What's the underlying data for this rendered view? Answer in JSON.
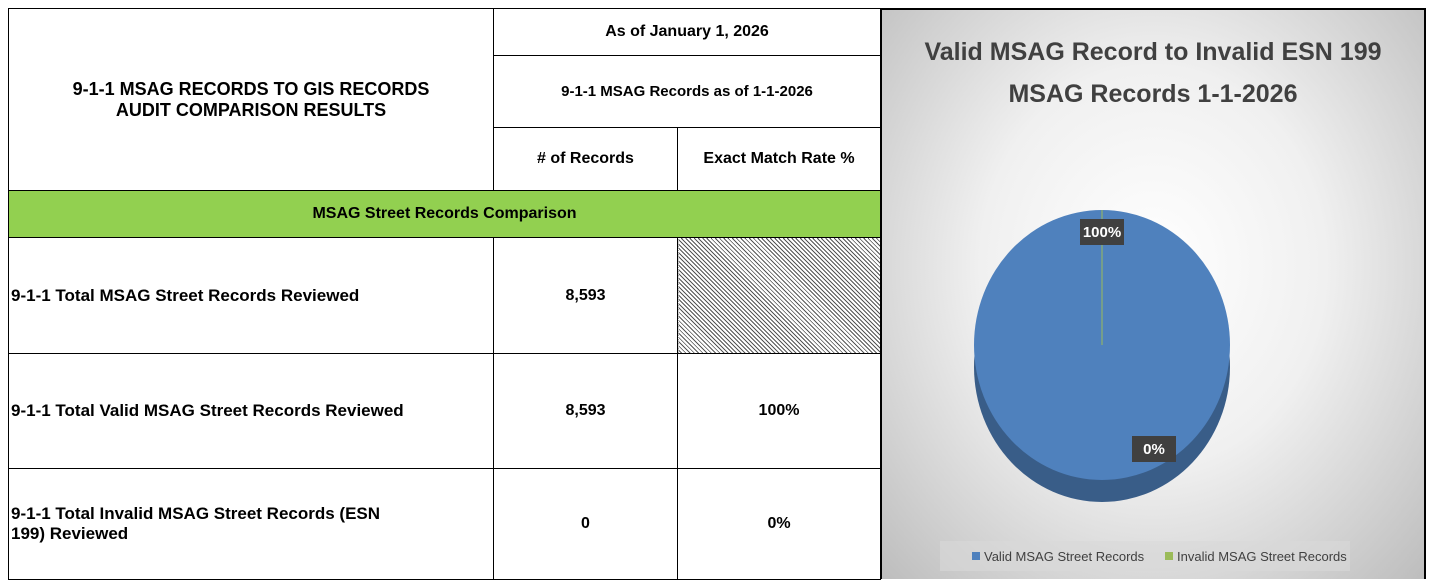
{
  "table": {
    "title": [
      "9-1-1 MSAG RECORDS TO GIS RECORDS",
      "AUDIT COMPARISON RESULTS"
    ],
    "as_of": "As of January 1, 2026",
    "records_as_of": "9-1-1 MSAG Records as of 1-1-2026",
    "columns": [
      "# of Records",
      "Exact Match Rate %"
    ],
    "section": "MSAG Street Records Comparison",
    "rows": [
      [
        "9-1-1 Total MSAG Street Records Reviewed",
        "8,593"
      ],
      [
        "9-1-1 Total Valid MSAG Street Records Reviewed",
        "8,593",
        "100%"
      ],
      [
        "9-1-1 Total Invalid MSAG Street Records (ESN 199) Reviewed",
        "0",
        "0%"
      ]
    ]
  },
  "chart_data": {
    "type": "pie",
    "title": [
      "Valid MSAG Record to Invalid ESN 199",
      "MSAG Records 1-1-2026"
    ],
    "categories": [
      "Valid MSAG Street Records",
      "Invalid MSAG Street Records"
    ],
    "values": [
      100,
      0
    ],
    "value_labels": [
      "100%",
      "0%"
    ],
    "colors": [
      "#4f81bd",
      "#9bbb59"
    ],
    "legend": "bottom"
  }
}
